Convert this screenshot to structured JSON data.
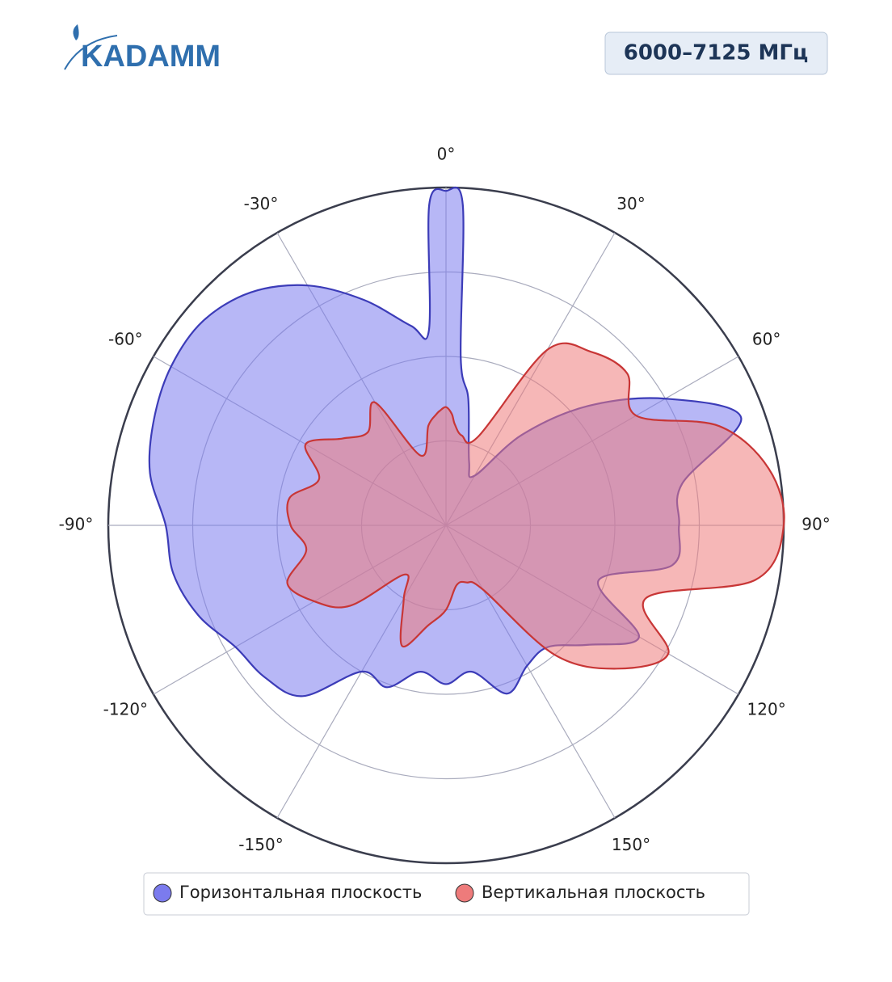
{
  "header": {
    "logo": "KADAMM",
    "badge": "6000–7125 МГц"
  },
  "chart_data": {
    "type": "polar",
    "direction": "clockwise",
    "theta": [
      -180,
      -170,
      -160,
      -150,
      -140,
      -130,
      -120,
      -110,
      -100,
      -90,
      -80,
      -70,
      -60,
      -50,
      -40,
      -30,
      -20,
      -10,
      -5,
      -3,
      0,
      3,
      5,
      10,
      20,
      30,
      40,
      50,
      60,
      70,
      80,
      90,
      100,
      110,
      120,
      130,
      140,
      150,
      160,
      170
    ],
    "rlim": [
      0,
      1
    ],
    "rticks": [
      0.25,
      0.5,
      0.75,
      1
    ],
    "thetaticks": [
      {
        "value": 0,
        "label": "0°"
      },
      {
        "value": 30,
        "label": "30°"
      },
      {
        "value": 60,
        "label": "60°"
      },
      {
        "value": 90,
        "label": "90°"
      },
      {
        "value": 120,
        "label": "120°"
      },
      {
        "value": 150,
        "label": "150°"
      },
      {
        "value": -150,
        "label": "-150°"
      },
      {
        "value": -120,
        "label": "-120°"
      },
      {
        "value": -90,
        "label": "-90°"
      },
      {
        "value": -60,
        "label": "-60°"
      },
      {
        "value": -30,
        "label": "-30°"
      }
    ],
    "series": [
      {
        "name": "Горизонтальная плоскость",
        "color": "#7b7bee",
        "stroke": "#3c3cb8",
        "values": [
          0.47,
          0.44,
          0.51,
          0.5,
          0.66,
          0.7,
          0.72,
          0.78,
          0.82,
          0.83,
          0.89,
          0.92,
          0.94,
          0.94,
          0.9,
          0.82,
          0.71,
          0.6,
          0.58,
          0.95,
          0.99,
          0.95,
          0.5,
          0.38,
          0.2,
          0.17,
          0.35,
          0.55,
          0.75,
          0.93,
          0.71,
          0.69,
          0.68,
          0.48,
          0.66,
          0.55,
          0.47,
          0.48,
          0.53,
          0.44
        ]
      },
      {
        "name": "Вертикальная плоскость",
        "color": "#ee7b7b",
        "stroke": "#c83636",
        "values": [
          0.25,
          0.3,
          0.38,
          0.25,
          0.19,
          0.37,
          0.45,
          0.5,
          0.42,
          0.46,
          0.47,
          0.4,
          0.48,
          0.4,
          0.36,
          0.42,
          0.22,
          0.3,
          0.33,
          0.34,
          0.35,
          0.33,
          0.3,
          0.27,
          0.28,
          0.6,
          0.67,
          0.7,
          0.65,
          0.86,
          0.97,
          1.0,
          0.93,
          0.63,
          0.76,
          0.66,
          0.5,
          0.22,
          0.18,
          0.18
        ]
      }
    ]
  }
}
